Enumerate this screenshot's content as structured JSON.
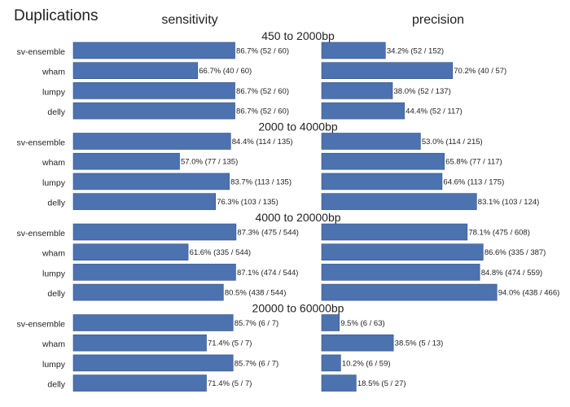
{
  "chart_data": {
    "type": "bar",
    "orientation": "horizontal",
    "title": "Duplications",
    "columns": [
      "sensitivity",
      "precision"
    ],
    "methods": [
      "sv-ensemble",
      "wham",
      "lumpy",
      "delly"
    ],
    "bar_color": "#4C72B0",
    "groups": [
      {
        "label": "450 to 2000bp",
        "sensitivity": [
          {
            "value": 86.7,
            "label": "86.7% (52 / 60)"
          },
          {
            "value": 66.7,
            "label": "66.7% (40 / 60)"
          },
          {
            "value": 86.7,
            "label": "86.7% (52 / 60)"
          },
          {
            "value": 86.7,
            "label": "86.7% (52 / 60)"
          }
        ],
        "precision": [
          {
            "value": 34.2,
            "label": "34.2% (52 / 152)"
          },
          {
            "value": 70.2,
            "label": "70.2% (40 / 57)"
          },
          {
            "value": 38.0,
            "label": "38.0% (52 / 137)"
          },
          {
            "value": 44.4,
            "label": "44.4% (52 / 117)"
          }
        ]
      },
      {
        "label": "2000 to 4000bp",
        "sensitivity": [
          {
            "value": 84.4,
            "label": "84.4% (114 / 135)"
          },
          {
            "value": 57.0,
            "label": "57.0% (77 / 135)"
          },
          {
            "value": 83.7,
            "label": "83.7% (113 / 135)"
          },
          {
            "value": 76.3,
            "label": "76.3% (103 / 135)"
          }
        ],
        "precision": [
          {
            "value": 53.0,
            "label": "53.0% (114 / 215)"
          },
          {
            "value": 65.8,
            "label": "65.8% (77 / 117)"
          },
          {
            "value": 64.6,
            "label": "64.6% (113 / 175)"
          },
          {
            "value": 83.1,
            "label": "83.1% (103 / 124)"
          }
        ]
      },
      {
        "label": "4000 to 20000bp",
        "sensitivity": [
          {
            "value": 87.3,
            "label": "87.3% (475 / 544)"
          },
          {
            "value": 61.6,
            "label": "61.6% (335 / 544)"
          },
          {
            "value": 87.1,
            "label": "87.1% (474 / 544)"
          },
          {
            "value": 80.5,
            "label": "80.5% (438 / 544)"
          }
        ],
        "precision": [
          {
            "value": 78.1,
            "label": "78.1% (475 / 608)"
          },
          {
            "value": 86.6,
            "label": "86.6% (335 / 387)"
          },
          {
            "value": 84.8,
            "label": "84.8% (474 / 559)"
          },
          {
            "value": 94.0,
            "label": "94.0% (438 / 466)"
          }
        ]
      },
      {
        "label": "20000 to 60000bp",
        "sensitivity": [
          {
            "value": 85.7,
            "label": "85.7% (6 / 7)"
          },
          {
            "value": 71.4,
            "label": "71.4% (5 / 7)"
          },
          {
            "value": 85.7,
            "label": "85.7% (6 / 7)"
          },
          {
            "value": 71.4,
            "label": "71.4% (5 / 7)"
          }
        ],
        "precision": [
          {
            "value": 9.5,
            "label": "9.5% (6 / 63)"
          },
          {
            "value": 38.5,
            "label": "38.5% (5 / 13)"
          },
          {
            "value": 10.2,
            "label": "10.2% (6 / 59)"
          },
          {
            "value": 18.5,
            "label": "18.5% (5 / 27)"
          }
        ]
      }
    ],
    "xlim": [
      0,
      100
    ],
    "grid": false
  }
}
